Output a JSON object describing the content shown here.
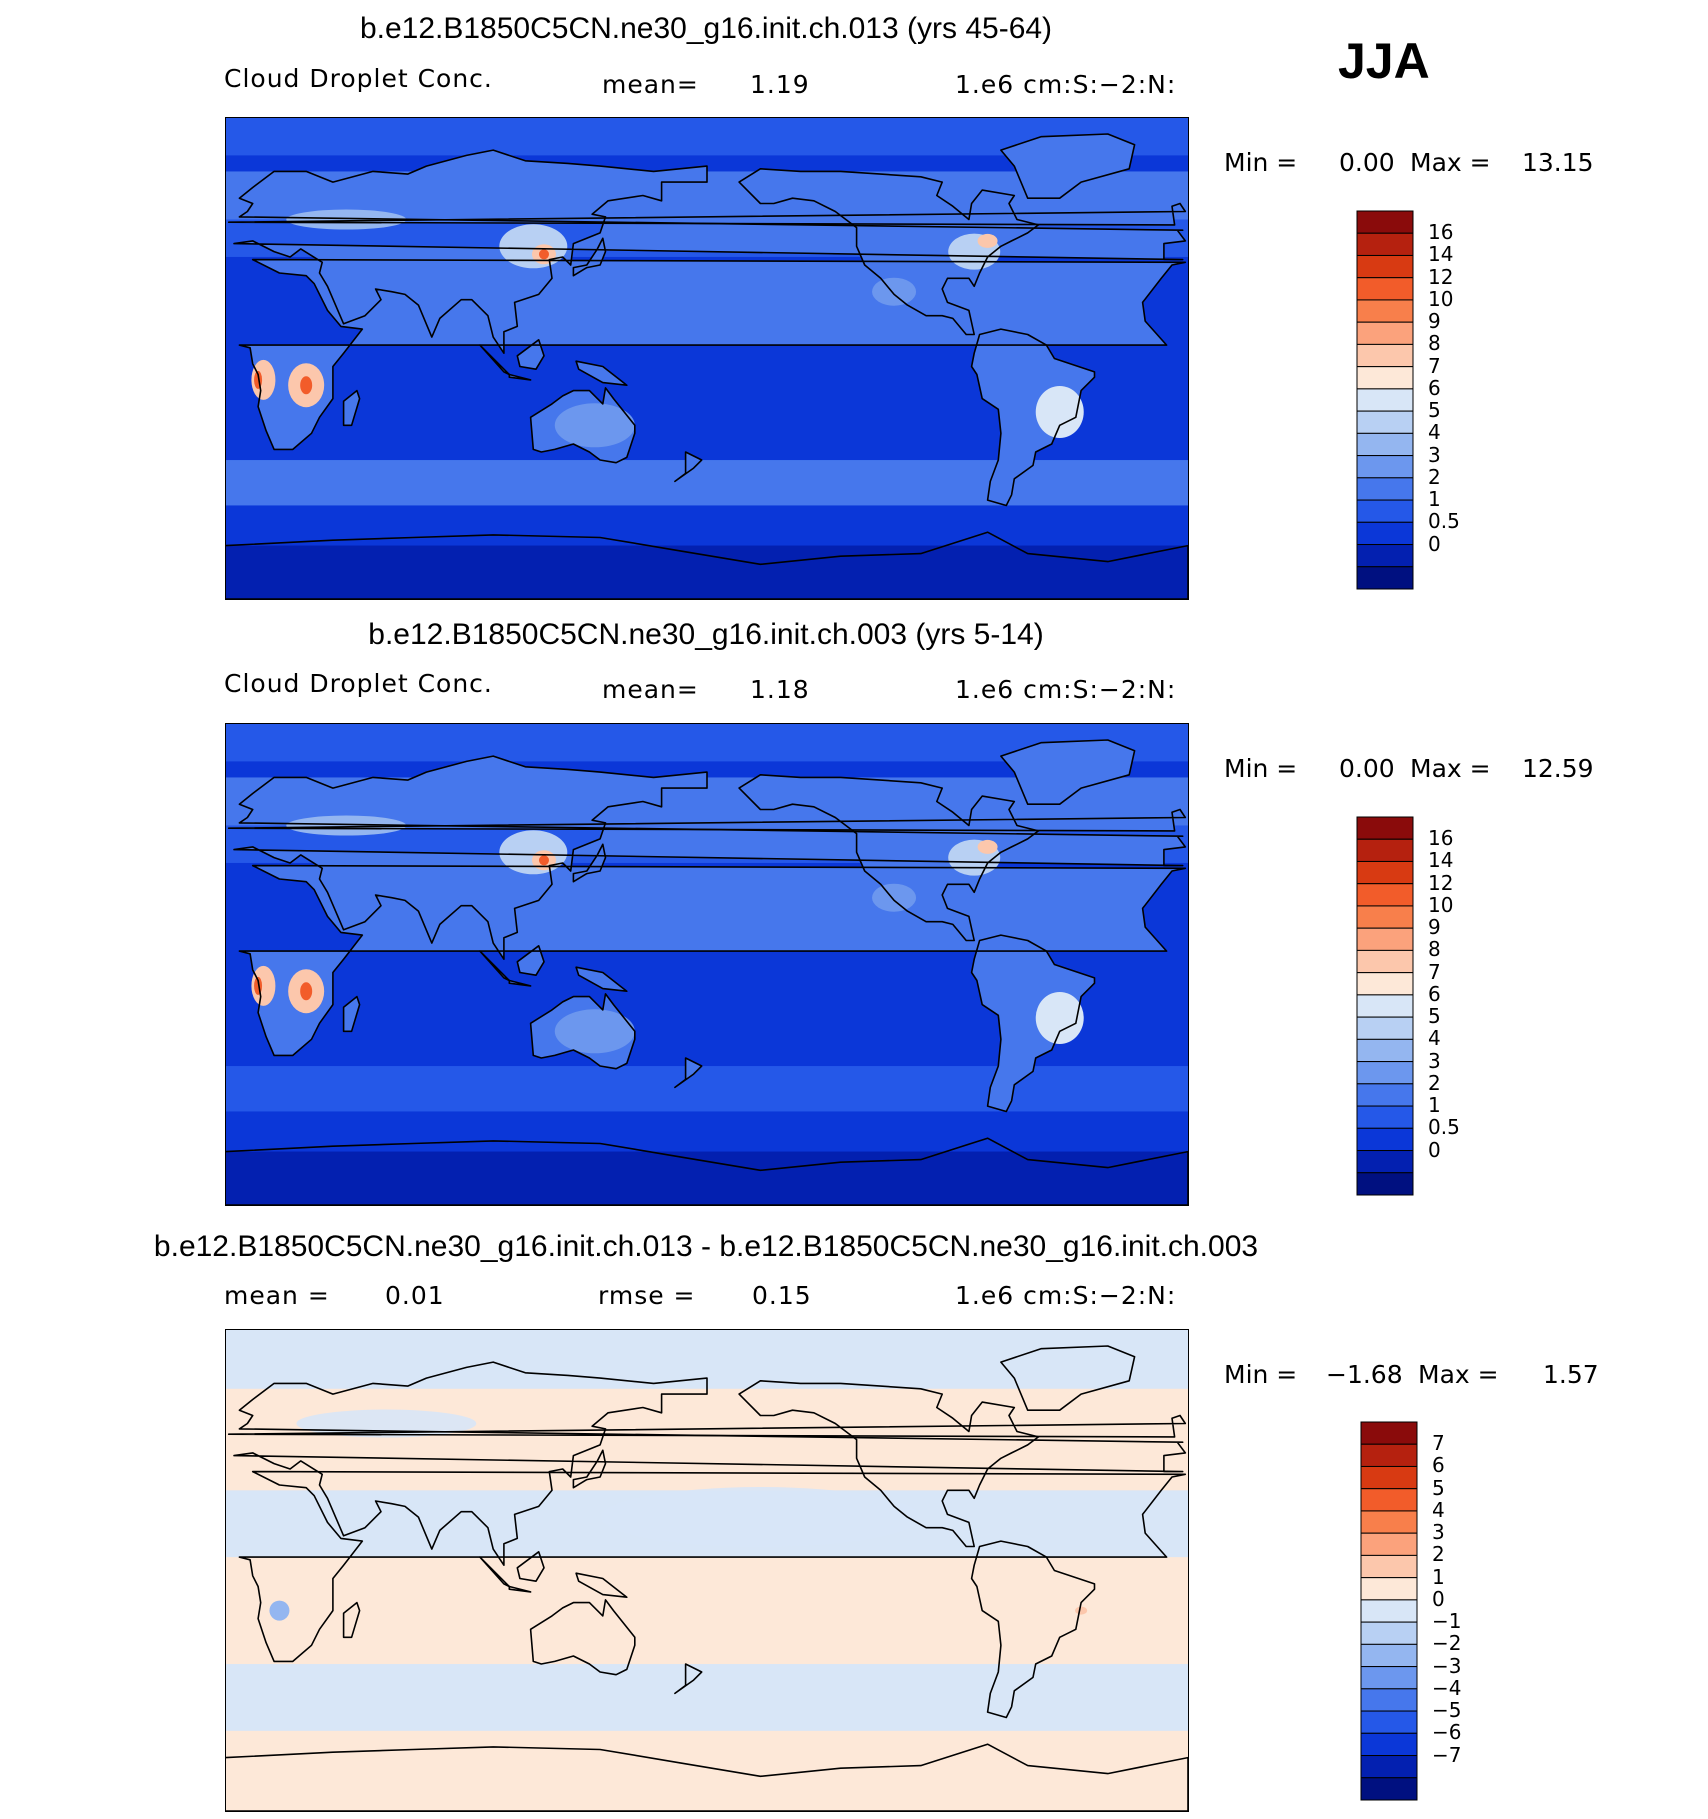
{
  "season": "JJA",
  "panels": [
    {
      "title": "b.e12.B1850C5CN.ne30_g16.init.ch.013 (yrs 45-64)",
      "left_label": "Cloud Droplet Conc.",
      "stat_label": "mean=",
      "stat_value": "1.19",
      "units": "1.e6 cm:S:−2:N:",
      "min_label": "Min =",
      "min_value": "0.00",
      "max_label": "Max =",
      "max_value": "13.15",
      "colorbar_labels": [
        "16",
        "14",
        "12",
        "10",
        "9",
        "8",
        "7",
        "6",
        "5",
        "4",
        "3",
        "2",
        "1",
        "0.5",
        "0"
      ],
      "colors": [
        "#8a0b0b",
        "#b5210f",
        "#d83a12",
        "#f25c2a",
        "#f87f4b",
        "#fba27c",
        "#fcc7ac",
        "#fde8d8",
        "#d8e6f7",
        "#b8d0f3",
        "#94b6f0",
        "#6c97ee",
        "#4677ec",
        "#2558e8",
        "#0b37d8",
        "#0320b0",
        "#001080"
      ]
    },
    {
      "title": "b.e12.B1850C5CN.ne30_g16.init.ch.003 (yrs 5-14)",
      "left_label": "Cloud Droplet Conc.",
      "stat_label": "mean=",
      "stat_value": "1.18",
      "units": "1.e6 cm:S:−2:N:",
      "min_label": "Min =",
      "min_value": "0.00",
      "max_label": "Max =",
      "max_value": "12.59",
      "colorbar_labels": [
        "16",
        "14",
        "12",
        "10",
        "9",
        "8",
        "7",
        "6",
        "5",
        "4",
        "3",
        "2",
        "1",
        "0.5",
        "0"
      ],
      "colors": [
        "#8a0b0b",
        "#b5210f",
        "#d83a12",
        "#f25c2a",
        "#f87f4b",
        "#fba27c",
        "#fcc7ac",
        "#fde8d8",
        "#d8e6f7",
        "#b8d0f3",
        "#94b6f0",
        "#6c97ee",
        "#4677ec",
        "#2558e8",
        "#0b37d8",
        "#0320b0",
        "#001080"
      ]
    },
    {
      "title": "b.e12.B1850C5CN.ne30_g16.init.ch.013 - b.e12.B1850C5CN.ne30_g16.init.ch.003",
      "left_label": "mean =",
      "left_value": "0.01",
      "stat_label": "rmse =",
      "stat_value": "0.15",
      "units": "1.e6 cm:S:−2:N:",
      "min_label": "Min =",
      "min_value": "−1.68",
      "max_label": "Max =",
      "max_value": "1.57",
      "colorbar_labels": [
        "7",
        "6",
        "5",
        "4",
        "3",
        "2",
        "1",
        "0",
        "−1",
        "−2",
        "−3",
        "−4",
        "−5",
        "−6",
        "−7"
      ],
      "colors": [
        "#8a0b0b",
        "#b5210f",
        "#d83a12",
        "#f25c2a",
        "#f87f4b",
        "#fba27c",
        "#fcc7ac",
        "#fde8d8",
        "#d8e6f7",
        "#b8d0f3",
        "#94b6f0",
        "#6c97ee",
        "#4677ec",
        "#2558e8",
        "#0b37d8",
        "#0320b0",
        "#001080"
      ]
    }
  ],
  "chart_data": [
    {
      "type": "heatmap",
      "title": "b.e12.B1850C5CN.ne30_g16.init.ch.013 (yrs 45-64)",
      "variable": "Cloud Droplet Conc.",
      "units": "1.e6 cm:S:−2:N:",
      "mean": 1.19,
      "min": 0.0,
      "max": 13.15,
      "contour_levels": [
        0,
        0.5,
        1,
        2,
        3,
        4,
        5,
        6,
        7,
        8,
        9,
        10,
        12,
        14,
        16
      ]
    },
    {
      "type": "heatmap",
      "title": "b.e12.B1850C5CN.ne30_g16.init.ch.003 (yrs 5-14)",
      "variable": "Cloud Droplet Conc.",
      "units": "1.e6 cm:S:−2:N:",
      "mean": 1.18,
      "min": 0.0,
      "max": 12.59,
      "contour_levels": [
        0,
        0.5,
        1,
        2,
        3,
        4,
        5,
        6,
        7,
        8,
        9,
        10,
        12,
        14,
        16
      ]
    },
    {
      "type": "heatmap",
      "title": "b.e12.B1850C5CN.ne30_g16.init.ch.013 - b.e12.B1850C5CN.ne30_g16.init.ch.003",
      "units": "1.e6 cm:S:−2:N:",
      "mean": 0.01,
      "rmse": 0.15,
      "min": -1.68,
      "max": 1.57,
      "contour_levels": [
        -7,
        -6,
        -5,
        -4,
        -3,
        -2,
        -1,
        0,
        1,
        2,
        3,
        4,
        5,
        6,
        7
      ]
    }
  ]
}
